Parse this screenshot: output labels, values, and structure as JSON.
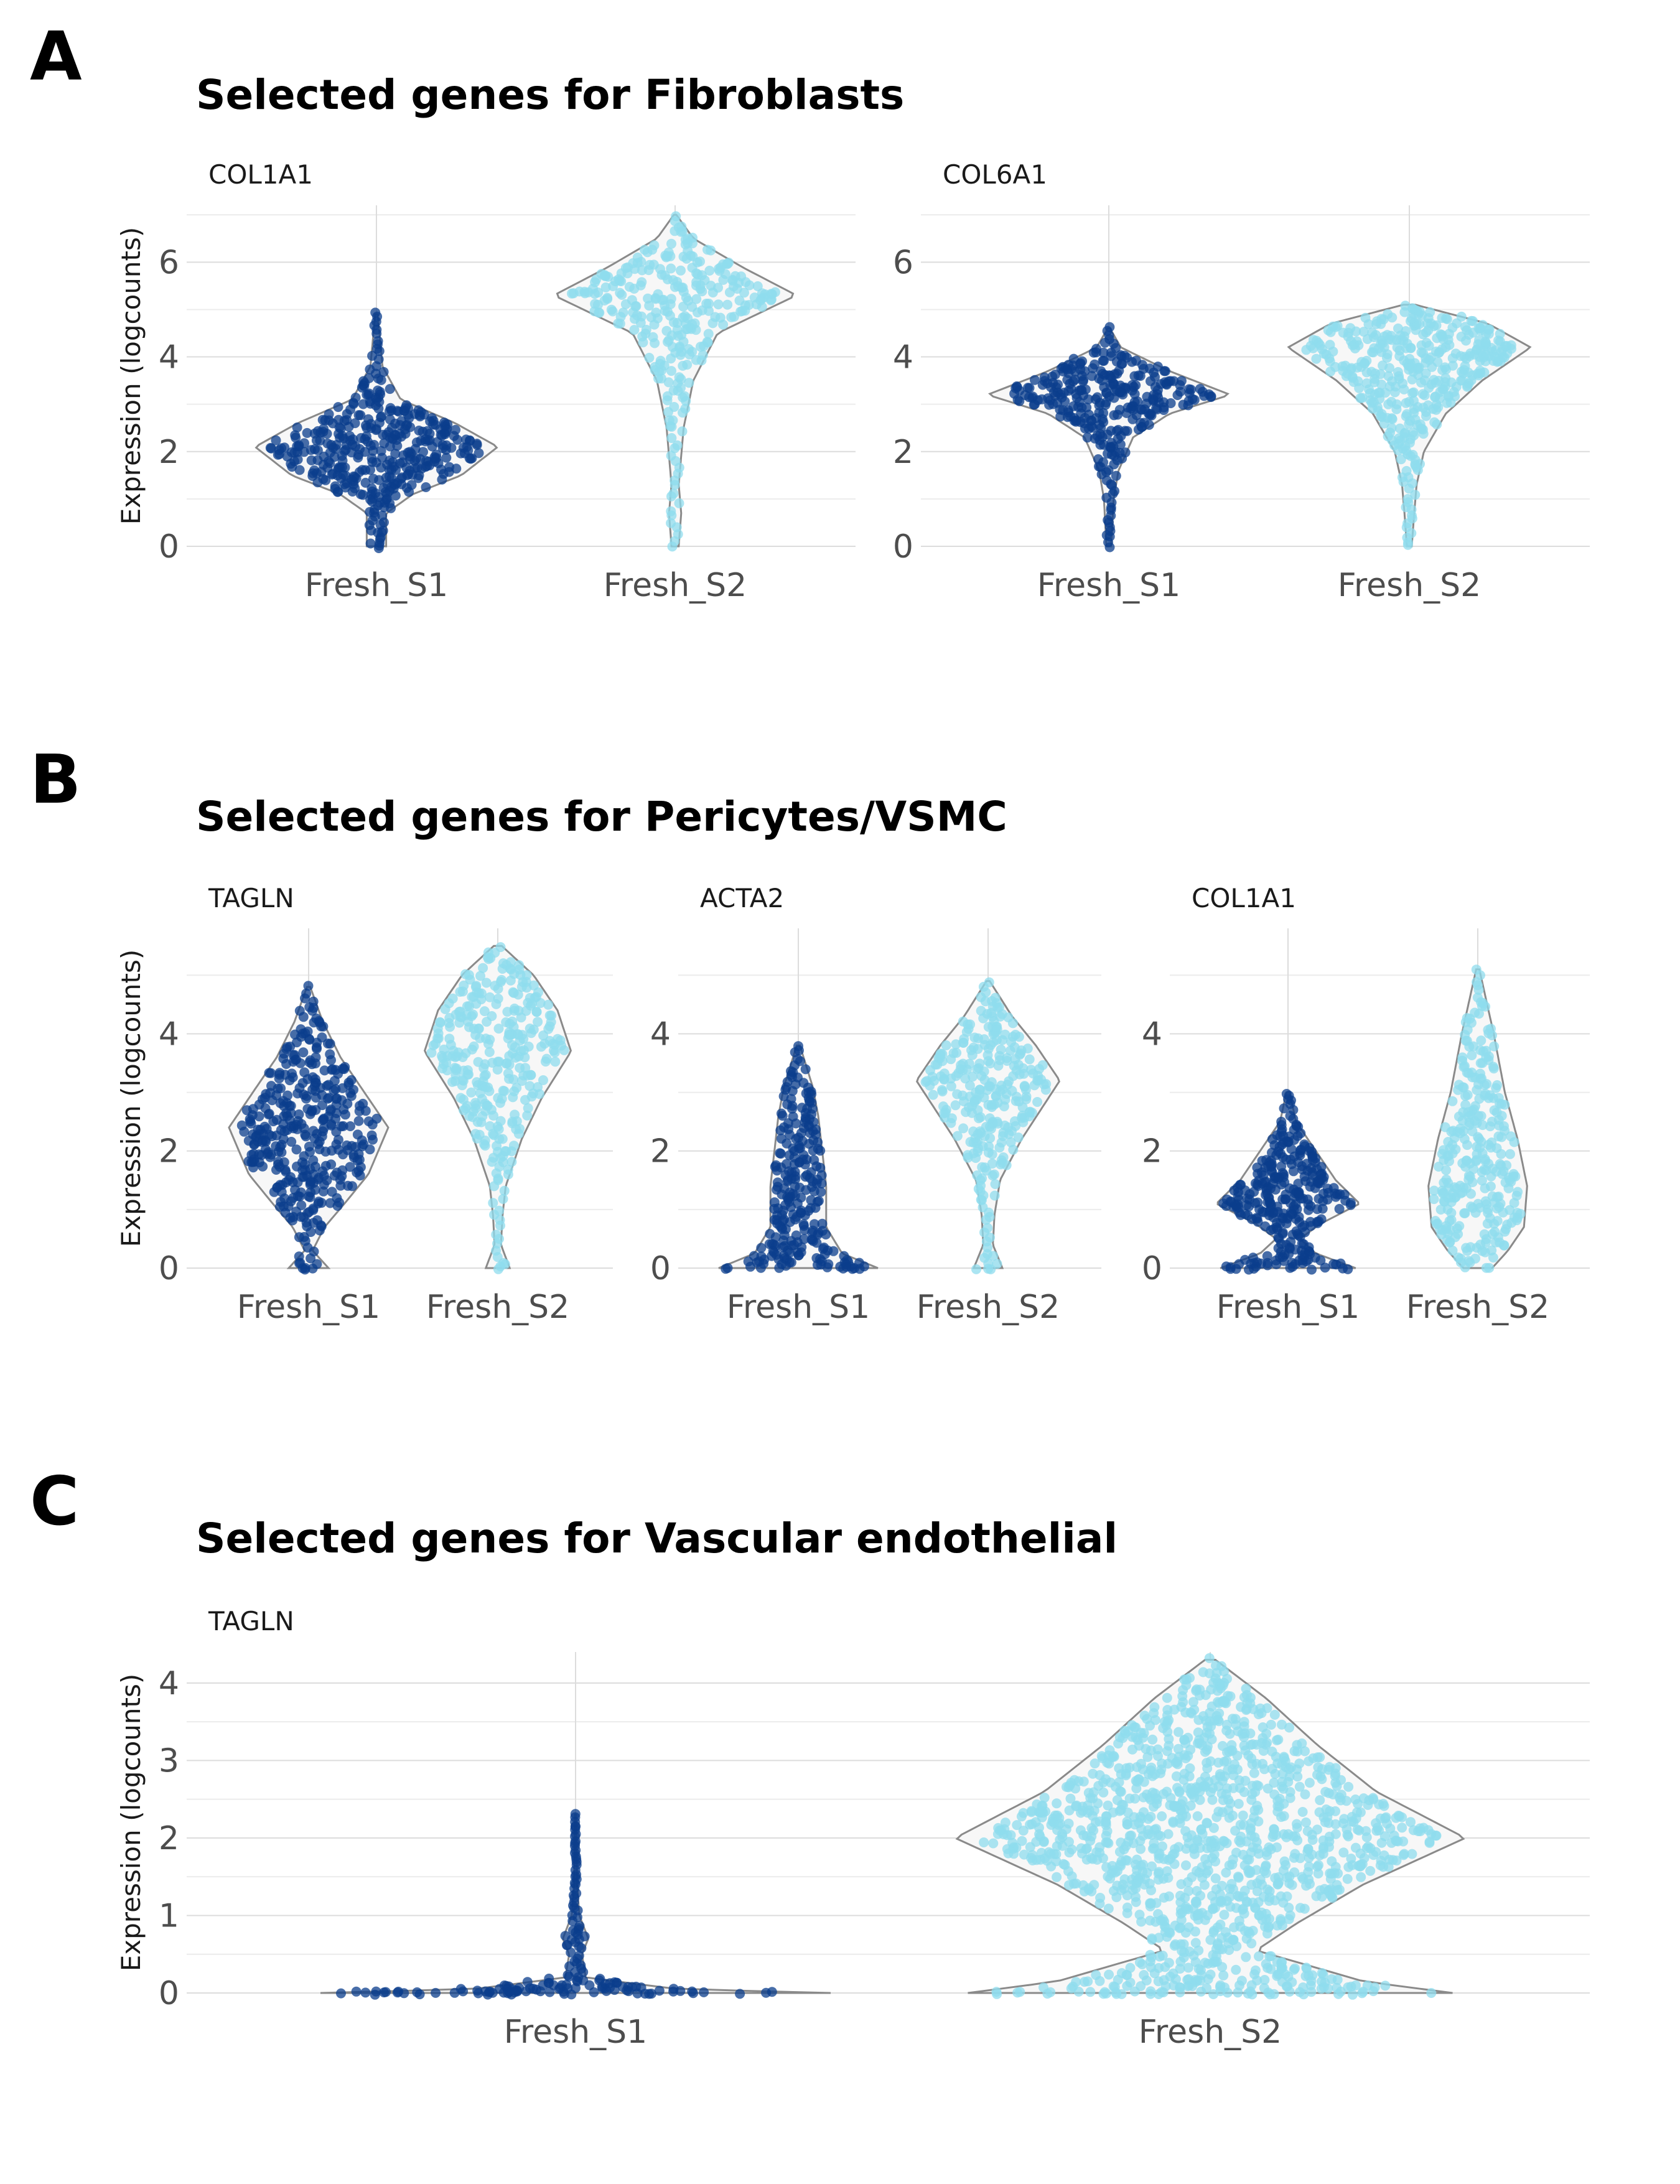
{
  "colors": {
    "fresh_s1": "#0b3d8c",
    "fresh_s2": "#8fdcee",
    "violin_fill": "#f7f7f7",
    "violin_stroke": "#8a8a8a",
    "grid": "#dcdcdc"
  },
  "sections": [
    {
      "letter": "A",
      "title": "Selected genes for Fibroblasts"
    },
    {
      "letter": "B",
      "title": "Selected genes for Pericytes/VSMC"
    },
    {
      "letter": "C",
      "title": "Selected genes for Vascular endothelial"
    }
  ],
  "chart_data": [
    {
      "type": "violin",
      "section": "A",
      "facet": "COL1A1",
      "ylabel": "Expression (logcounts)",
      "ylim": [
        0,
        7.2
      ],
      "yticks": [
        0,
        2,
        4,
        6
      ],
      "categories": [
        "Fresh_S1",
        "Fresh_S2"
      ],
      "series": [
        {
          "category": "Fresh_S1",
          "min": 0,
          "max": 4.9,
          "median": 2.1,
          "width_profile": [
            [
              0,
              0.08
            ],
            [
              0.7,
              0.08
            ],
            [
              1.1,
              0.3
            ],
            [
              1.5,
              0.7
            ],
            [
              2.1,
              1.0
            ],
            [
              2.6,
              0.65
            ],
            [
              3.1,
              0.2
            ],
            [
              3.8,
              0.05
            ],
            [
              4.9,
              0.01
            ]
          ]
        },
        {
          "category": "Fresh_S2",
          "min": 0,
          "max": 7.0,
          "median": 5.3,
          "width_profile": [
            [
              0,
              0.03
            ],
            [
              0.7,
              0.05
            ],
            [
              1.3,
              0.03
            ],
            [
              2.5,
              0.07
            ],
            [
              3.5,
              0.15
            ],
            [
              4.5,
              0.35
            ],
            [
              5.3,
              1.0
            ],
            [
              5.9,
              0.55
            ],
            [
              6.5,
              0.15
            ],
            [
              7.0,
              0.01
            ]
          ]
        }
      ]
    },
    {
      "type": "violin",
      "section": "A",
      "facet": "COL6A1",
      "ylabel": "",
      "ylim": [
        0,
        7.2
      ],
      "yticks": [
        0,
        2,
        4,
        6
      ],
      "categories": [
        "Fresh_S1",
        "Fresh_S2"
      ],
      "series": [
        {
          "category": "Fresh_S1",
          "min": 0,
          "max": 4.6,
          "median": 3.2,
          "width_profile": [
            [
              0,
              0.02
            ],
            [
              1.0,
              0.04
            ],
            [
              1.6,
              0.08
            ],
            [
              2.3,
              0.2
            ],
            [
              2.8,
              0.5
            ],
            [
              3.2,
              1.0
            ],
            [
              3.7,
              0.5
            ],
            [
              4.2,
              0.1
            ],
            [
              4.6,
              0.01
            ]
          ]
        },
        {
          "category": "Fresh_S2",
          "min": 0,
          "max": 5.1,
          "median": 4.2,
          "width_profile": [
            [
              0,
              0.02
            ],
            [
              0.7,
              0.04
            ],
            [
              1.3,
              0.06
            ],
            [
              2.0,
              0.12
            ],
            [
              2.8,
              0.3
            ],
            [
              3.5,
              0.6
            ],
            [
              4.2,
              1.0
            ],
            [
              4.7,
              0.65
            ],
            [
              5.1,
              0.05
            ]
          ]
        }
      ]
    },
    {
      "type": "violin",
      "section": "B",
      "facet": "TAGLN",
      "ylabel": "Expression (logcounts)",
      "ylim": [
        0,
        5.8
      ],
      "yticks": [
        0,
        2,
        4
      ],
      "categories": [
        "Fresh_S1",
        "Fresh_S2"
      ],
      "series": [
        {
          "category": "Fresh_S1",
          "min": 0,
          "max": 4.8,
          "median": 2.4,
          "width_profile": [
            [
              0,
              0.25
            ],
            [
              0.3,
              0.05
            ],
            [
              0.7,
              0.2
            ],
            [
              1.1,
              0.45
            ],
            [
              1.6,
              0.75
            ],
            [
              2.4,
              1.0
            ],
            [
              3.0,
              0.7
            ],
            [
              3.6,
              0.4
            ],
            [
              4.2,
              0.18
            ],
            [
              4.8,
              0.02
            ]
          ]
        },
        {
          "category": "Fresh_S2",
          "min": 0,
          "max": 5.5,
          "median": 3.7,
          "width_profile": [
            [
              0,
              0.15
            ],
            [
              0.4,
              0.04
            ],
            [
              0.9,
              0.06
            ],
            [
              1.4,
              0.1
            ],
            [
              2.2,
              0.3
            ],
            [
              2.9,
              0.55
            ],
            [
              3.7,
              0.92
            ],
            [
              4.4,
              0.75
            ],
            [
              5.0,
              0.45
            ],
            [
              5.5,
              0.05
            ]
          ]
        }
      ]
    },
    {
      "type": "violin",
      "section": "B",
      "facet": "ACTA2",
      "ylabel": "",
      "ylim": [
        0,
        5.8
      ],
      "yticks": [
        0,
        2,
        4
      ],
      "categories": [
        "Fresh_S1",
        "Fresh_S2"
      ],
      "series": [
        {
          "category": "Fresh_S1",
          "min": 0,
          "max": 3.8,
          "median": 1.4,
          "width_profile": [
            [
              0,
              1.0
            ],
            [
              0.25,
              0.55
            ],
            [
              0.7,
              0.35
            ],
            [
              1.1,
              0.35
            ],
            [
              1.4,
              0.35
            ],
            [
              2.0,
              0.3
            ],
            [
              2.6,
              0.25
            ],
            [
              3.1,
              0.18
            ],
            [
              3.8,
              0.02
            ]
          ]
        },
        {
          "category": "Fresh_S2",
          "min": 0,
          "max": 4.9,
          "median": 3.2,
          "width_profile": [
            [
              0,
              0.18
            ],
            [
              0.4,
              0.06
            ],
            [
              0.9,
              0.08
            ],
            [
              1.5,
              0.15
            ],
            [
              2.2,
              0.42
            ],
            [
              3.2,
              0.9
            ],
            [
              3.8,
              0.6
            ],
            [
              4.3,
              0.3
            ],
            [
              4.9,
              0.02
            ]
          ]
        }
      ]
    },
    {
      "type": "violin",
      "section": "B",
      "facet": "COL1A1",
      "ylabel": "",
      "ylim": [
        0,
        5.8
      ],
      "yticks": [
        0,
        2,
        4
      ],
      "categories": [
        "Fresh_S1",
        "Fresh_S2"
      ],
      "series": [
        {
          "category": "Fresh_S1",
          "min": 0,
          "max": 3.0,
          "median": 1.1,
          "width_profile": [
            [
              0,
              0.85
            ],
            [
              0.25,
              0.35
            ],
            [
              0.5,
              0.15
            ],
            [
              0.75,
              0.4
            ],
            [
              1.1,
              0.9
            ],
            [
              1.5,
              0.6
            ],
            [
              2.0,
              0.35
            ],
            [
              2.5,
              0.1
            ],
            [
              3.0,
              0.02
            ]
          ]
        },
        {
          "category": "Fresh_S2",
          "min": 0,
          "max": 5.1,
          "median": 1.6,
          "width_profile": [
            [
              0,
              0.18
            ],
            [
              0.3,
              0.38
            ],
            [
              0.7,
              0.58
            ],
            [
              1.4,
              0.62
            ],
            [
              2.2,
              0.5
            ],
            [
              3.0,
              0.34
            ],
            [
              4.0,
              0.2
            ],
            [
              5.1,
              0.02
            ]
          ]
        }
      ]
    },
    {
      "type": "violin",
      "section": "C",
      "facet": "TAGLN",
      "ylabel": "Expression (logcounts)",
      "ylim": [
        0,
        4.4
      ],
      "yticks": [
        0,
        1,
        2,
        3,
        4
      ],
      "categories": [
        "Fresh_S1",
        "Fresh_S2"
      ],
      "series": [
        {
          "category": "Fresh_S1",
          "min": 0,
          "max": 2.3,
          "median": 0,
          "width_profile": [
            [
              0,
              1.0
            ],
            [
              0.05,
              0.4
            ],
            [
              0.2,
              0.04
            ],
            [
              0.5,
              0.025
            ],
            [
              0.7,
              0.05
            ],
            [
              1.0,
              0.015
            ],
            [
              1.4,
              0.006
            ],
            [
              2.3,
              0.002
            ]
          ]
        },
        {
          "category": "Fresh_S2",
          "min": 0,
          "max": 4.3,
          "median": 1.4,
          "width_profile": [
            [
              0,
              0.95
            ],
            [
              0.15,
              0.6
            ],
            [
              0.55,
              0.18
            ],
            [
              0.9,
              0.34
            ],
            [
              1.4,
              0.6
            ],
            [
              2.0,
              1.0
            ],
            [
              2.6,
              0.65
            ],
            [
              3.2,
              0.42
            ],
            [
              3.8,
              0.22
            ],
            [
              4.3,
              0.02
            ]
          ]
        }
      ]
    }
  ]
}
